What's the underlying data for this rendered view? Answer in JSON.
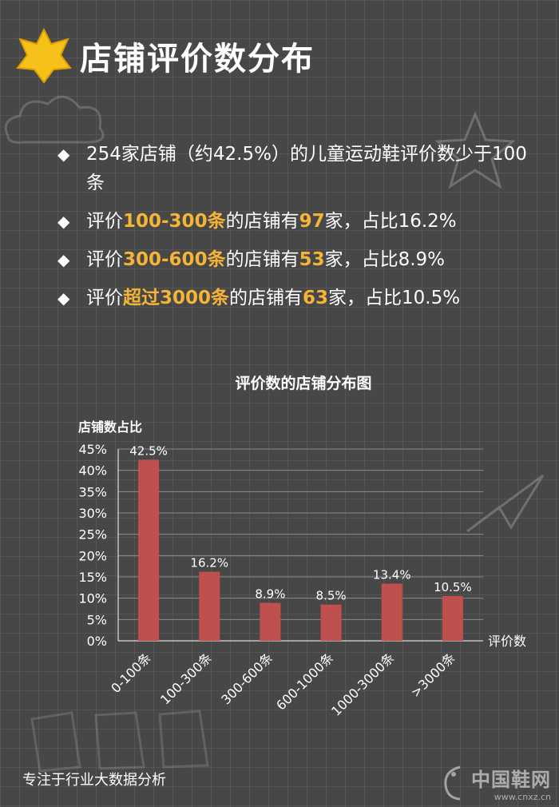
{
  "header": {
    "title": "店铺评价数分布",
    "badge_icon": "star-icon"
  },
  "bullets": [
    {
      "icon": "diamond-icon",
      "parts": [
        {
          "t": "254家店铺（约42.5%）的儿童运动鞋评价数少于100条",
          "h": false
        }
      ]
    },
    {
      "icon": "diamond-icon",
      "parts": [
        {
          "t": "评价",
          "h": false
        },
        {
          "t": "100-300条",
          "h": true
        },
        {
          "t": "的店铺有",
          "h": false
        },
        {
          "t": "97",
          "h": true
        },
        {
          "t": "家，占比16.2%",
          "h": false
        }
      ]
    },
    {
      "icon": "diamond-icon",
      "parts": [
        {
          "t": "评价",
          "h": false
        },
        {
          "t": "300-600条",
          "h": true
        },
        {
          "t": "的店铺有",
          "h": false
        },
        {
          "t": "53",
          "h": true
        },
        {
          "t": "家，占比8.9%",
          "h": false
        }
      ]
    },
    {
      "icon": "diamond-icon",
      "parts": [
        {
          "t": "评价",
          "h": false
        },
        {
          "t": "超过3000条",
          "h": true
        },
        {
          "t": "的店铺有",
          "h": false
        },
        {
          "t": "63",
          "h": true
        },
        {
          "t": "家，占比10.5%",
          "h": false
        }
      ]
    }
  ],
  "chart_data": {
    "type": "bar",
    "title": "评价数的店铺分布图",
    "ylabel": "店铺数占比",
    "xlabel": "评价数",
    "categories": [
      "0-100条",
      "100-300条",
      "300-600条",
      "600-1000条",
      "1000-3000条",
      ">3000条"
    ],
    "values": [
      42.5,
      16.2,
      8.9,
      8.5,
      13.4,
      10.5
    ],
    "data_labels": [
      "42.5%",
      "16.2%",
      "8.9%",
      "8.5%",
      "13.4%",
      "10.5%"
    ],
    "yticks": [
      0,
      5,
      10,
      15,
      20,
      25,
      30,
      35,
      40,
      45
    ],
    "ytick_labels": [
      "0%",
      "5%",
      "10%",
      "15%",
      "20%",
      "25%",
      "30%",
      "35%",
      "40%",
      "45%"
    ],
    "ylim": [
      0,
      45
    ],
    "grid": true,
    "bar_color": "#c0504d"
  },
  "footer": {
    "text": "专注于行业大数据分析"
  },
  "watermark": {
    "name": "中国鞋网",
    "url": "www.cnxz.cn"
  },
  "colors": {
    "background": "#474747",
    "highlight": "#f3b437",
    "badge": "#f6c21a",
    "bar": "#c0504d"
  }
}
